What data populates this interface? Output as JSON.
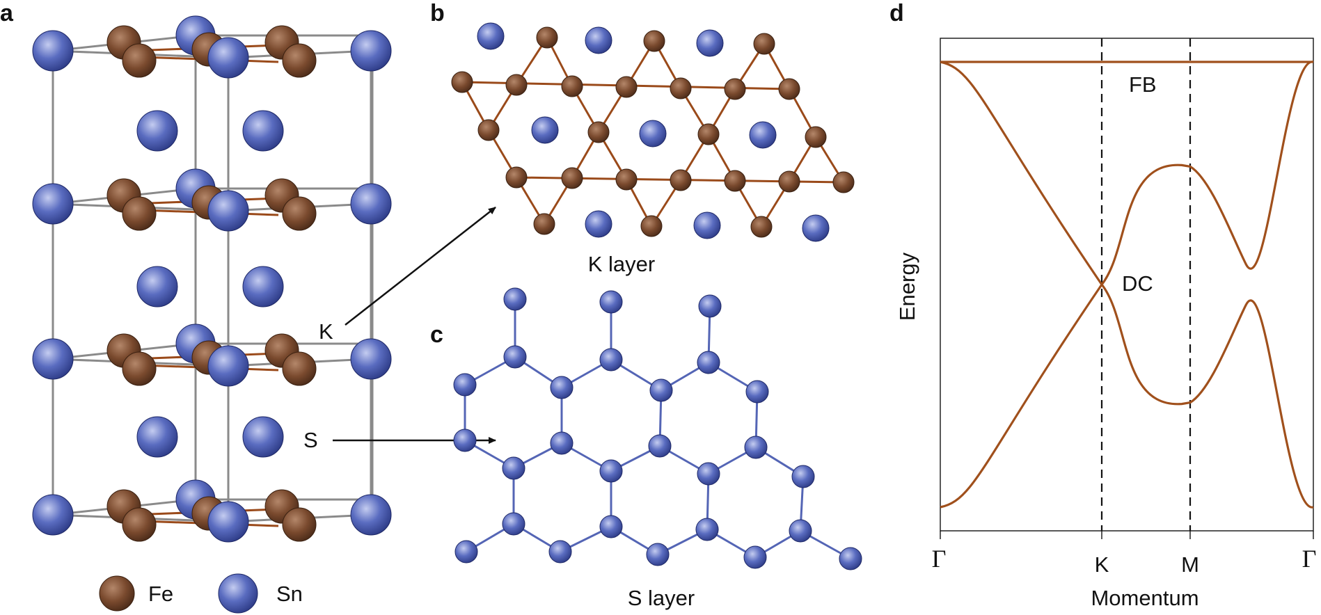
{
  "panels": {
    "a": {
      "label": "a",
      "legend": {
        "fe": "Fe",
        "sn": "Sn"
      },
      "layer_labels": {
        "k": "K",
        "s": "S"
      }
    },
    "b": {
      "label": "b",
      "caption": "K layer"
    },
    "c": {
      "label": "c",
      "caption": "S layer"
    },
    "d": {
      "label": "d"
    }
  },
  "colors": {
    "fe": "#7a4a2e",
    "sn": "#5a6cc0",
    "band": "#a0501c",
    "bond_k": "#9a4a1a",
    "bond_s": "#5465b5"
  },
  "chart_data": {
    "type": "line",
    "title": "",
    "xlabel": "Momentum",
    "ylabel": "Energy",
    "x_ticks": [
      "Γ",
      "K",
      "M",
      "Γ"
    ],
    "annotations": [
      "FB",
      "DC"
    ],
    "vertical_dashed_lines_at": [
      "K",
      "M"
    ],
    "series": [
      {
        "x": [
          "Γ",
          "K",
          "M",
          "Γ"
        ],
        "values": [
          1.0,
          1.0,
          1.0,
          1.0
        ]
      },
      {
        "x": [
          "Γ",
          "K",
          "M",
          "Γ"
        ],
        "values": [
          1.0,
          0.0,
          -0.53,
          -1.0
        ]
      },
      {
        "x": [
          "Γ",
          "K",
          "M",
          "Γ"
        ],
        "values": [
          -1.0,
          0.0,
          0.53,
          1.0
        ]
      }
    ]
  }
}
